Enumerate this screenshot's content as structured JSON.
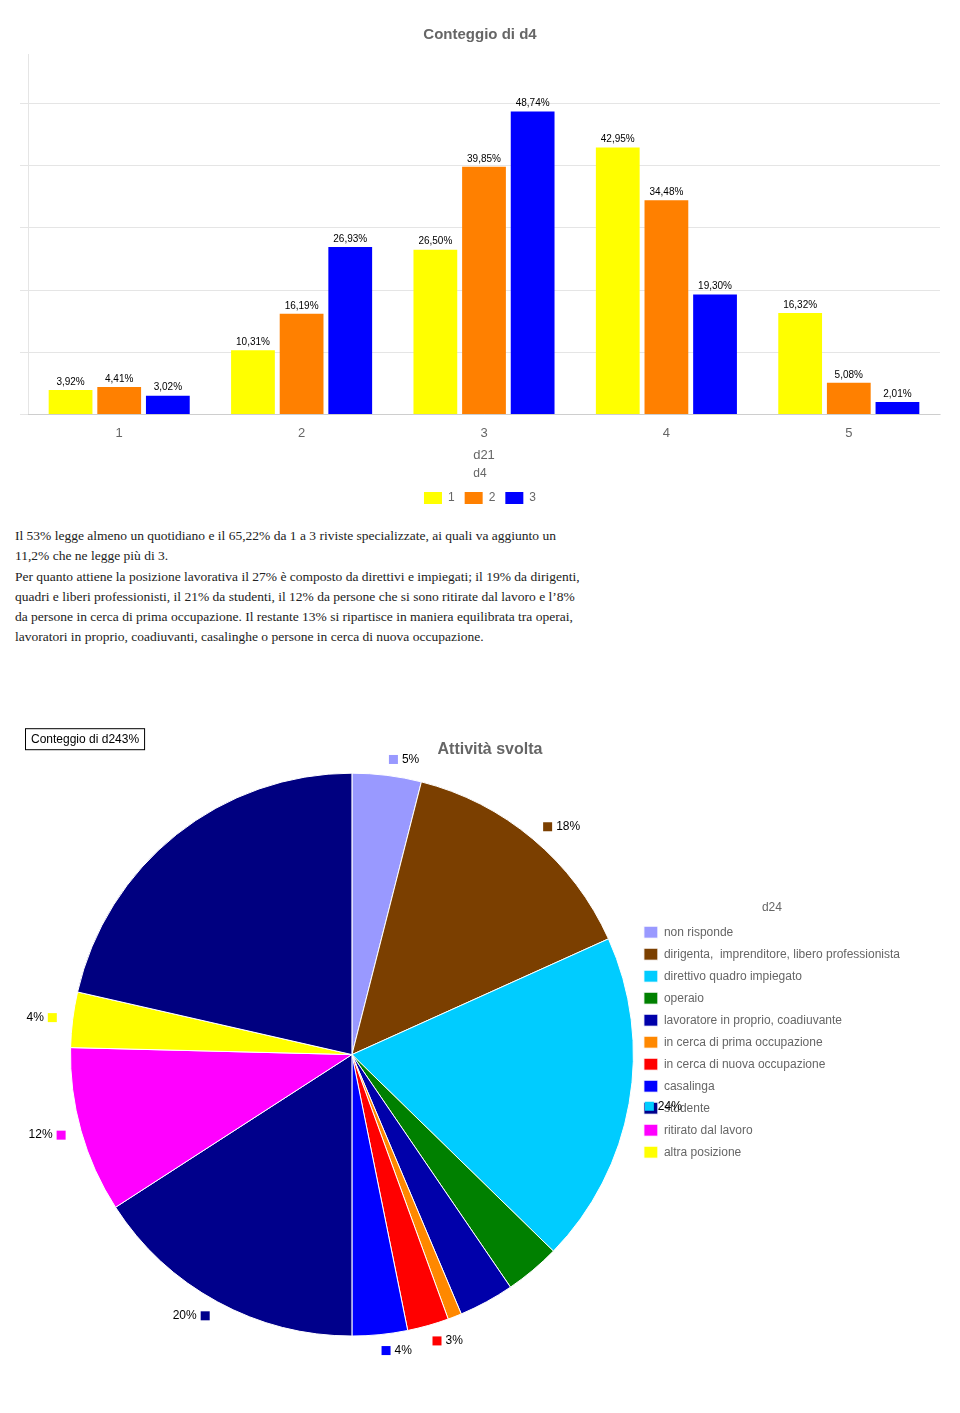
{
  "chart_data": [
    {
      "type": "bar",
      "title": "Conteggio di d4",
      "x_label": "d21",
      "legend_title": "d4",
      "categories": [
        "1",
        "2",
        "3",
        "4",
        "5"
      ],
      "series": [
        {
          "name": "1",
          "color": "#FFFF00",
          "values": [
            3.92,
            10.31,
            26.5,
            42.95,
            16.32
          ],
          "value_labels": [
            "3,92%",
            "10,31%",
            "26,50%",
            "42,95%",
            "16,32%"
          ]
        },
        {
          "name": "2",
          "color": "#FF8000",
          "values": [
            4.41,
            16.19,
            39.85,
            34.48,
            5.08
          ],
          "value_labels": [
            "4,41%",
            "16,19%",
            "39,85%",
            "34,48%",
            "5,08%"
          ]
        },
        {
          "name": "3",
          "color": "#0000FF",
          "values": [
            3.02,
            26.93,
            48.74,
            19.3,
            2.01
          ],
          "value_labels": [
            "3,02%",
            "26,93%",
            "48,74%",
            "19,30%",
            "2,01%"
          ]
        }
      ],
      "ylim": [
        0,
        58
      ],
      "yticks": [
        0,
        10,
        20,
        30,
        40,
        50
      ],
      "grid": true,
      "legend": "bottom",
      "data_labels": true,
      "tick_labels": "x",
      "annotations": [
        "Il 53% legge almeno un quotidiano e il 65,22% da 1 a 3 riviste specializzate, ai quali va aggiunto un",
        "11,2% che ne legge più di 3.",
        "Per quanto attiene la posizione lavorativa il 27% è composto da direttivi e impiegati; il 19% da dirigenti,",
        "quadri e liberi professionisti, il 21% da studenti, il 12% da persone che si sono ritirate dal lavoro e l’8%",
        "da persone in cerca di prima occupazione. Il restante 13% si ripartisce in maniera equilibrata tra operai,",
        "lavoratori in proprio, coadiuvanti, casalinghe o persone in cerca di nuova occupazione."
      ]
    },
    {
      "type": "pie",
      "title": "Attività svolta",
      "legend_title": "d24",
      "categories": [
        "non risponde",
        "dirigenta,  imprenditore, libero professionista",
        "direttivo quadro impiegato",
        "operaio",
        "lavoratore in proprio, coadiuvante",
        "in cerca di prima occupazione",
        "in cerca di nuova occupazione",
        "casalinga",
        "studente",
        "ritirato dal lavoro",
        "altra posizione",
        null
      ],
      "values": [
        5,
        18,
        24,
        4,
        4,
        1,
        3,
        4,
        20,
        12,
        4,
        27
      ],
      "value_labels": [
        "5%",
        "18%",
        "24%",
        null,
        null,
        null,
        "3%",
        "4%",
        "20%",
        "12%",
        "4%",
        null
      ],
      "colors": [
        "#9999FF",
        "#7B3F00",
        "#00CCFF",
        "#008000",
        "#0000AA",
        "#FF8800",
        "#FF0000",
        "#0000FF",
        "#00008B",
        "#FF00FF",
        "#FFFF00",
        "#000080"
      ],
      "legend": "right",
      "data_labels": true,
      "annotations": [
        "Conteggio di d243%"
      ]
    }
  ]
}
